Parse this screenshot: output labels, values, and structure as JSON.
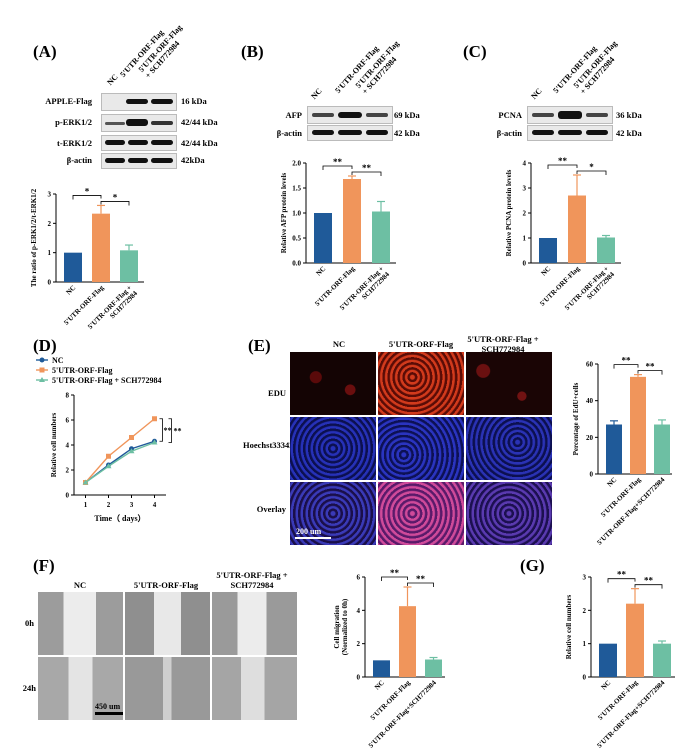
{
  "colors": {
    "nc": "#1f5a99",
    "orf": "#f0955b",
    "sch": "#6dbfa3"
  },
  "panel_labels": {
    "A": "(A)",
    "B": "(B)",
    "C": "(C)",
    "D": "(D)",
    "E": "(E)",
    "F": "(F)",
    "G": "(G)"
  },
  "lanes": {
    "nc": "NC",
    "orf": "5'UTR-ORF-Flag",
    "sch_line1": "5'UTR-ORF-Flag",
    "sch_line2": "+ SCH772984"
  },
  "blot_A": {
    "rows": [
      {
        "label": "APPLE-Flag",
        "kda": "16 kDa"
      },
      {
        "label": "p-ERK1/2",
        "kda": "42/44 kDa"
      },
      {
        "label": "t-ERK1/2",
        "kda": "42/44 kDa"
      },
      {
        "label": "β-actin",
        "kda": "42kDa"
      }
    ]
  },
  "blot_B": {
    "rows": [
      {
        "label": "AFP",
        "kda": "69 kDa"
      },
      {
        "label": "β-actin",
        "kda": "42 kDa"
      }
    ]
  },
  "blot_C": {
    "rows": [
      {
        "label": "PCNA",
        "kda": "36 kDa"
      },
      {
        "label": "β-actin",
        "kda": "42 kDa"
      }
    ]
  },
  "cond_labels": {
    "nc": "NC",
    "orf": "5'UTR-ORF-Flag",
    "sch_line1": "5'UTR-ORF-Flag +",
    "sch_line2": "SCH772984"
  },
  "panel_E": {
    "rows": [
      "EDU",
      "Hoechst33342",
      "Overlay"
    ],
    "scale": "200 um"
  },
  "panel_F": {
    "rows": [
      "0h",
      "24h"
    ],
    "scale": "450 um"
  },
  "chart_data": [
    {
      "id": "A",
      "type": "bar",
      "categories": [
        "NC",
        "5'UTR-ORF-Flag",
        "5'UTR-ORF-Flag + SCH772984"
      ],
      "values": [
        1.0,
        2.33,
        1.08
      ],
      "errors": [
        0,
        0.28,
        0.18
      ],
      "ylabel": "The ratio of p-ERK1/2/t-ERK1/2",
      "ylim": [
        0,
        3
      ],
      "yticks": [
        0,
        1,
        2,
        3
      ],
      "significance": [
        "*",
        "*"
      ]
    },
    {
      "id": "B",
      "type": "bar",
      "categories": [
        "NC",
        "5'UTR-ORF-Flag",
        "5'UTR-ORF-Flag + SCH772984"
      ],
      "values": [
        1.0,
        1.68,
        1.03
      ],
      "errors": [
        0,
        0.06,
        0.2
      ],
      "ylabel": "Relative AFP protein levels",
      "ylim": [
        0,
        2
      ],
      "yticks": [
        0.0,
        0.5,
        1.0,
        1.5,
        2.0
      ],
      "significance": [
        "**",
        "**"
      ]
    },
    {
      "id": "C",
      "type": "bar",
      "categories": [
        "NC",
        "5'UTR-ORF-Flag",
        "5'UTR-ORF-Flag + SCH772984"
      ],
      "values": [
        1.0,
        2.7,
        1.02
      ],
      "errors": [
        0,
        0.82,
        0.08
      ],
      "ylabel": "Relative PCNA protein levels",
      "ylim": [
        0,
        4
      ],
      "yticks": [
        0,
        1,
        2,
        3,
        4
      ],
      "significance": [
        "**",
        "*"
      ]
    },
    {
      "id": "D",
      "type": "line",
      "x": [
        1,
        2,
        3,
        4
      ],
      "xlabel": "Time（ days）",
      "ylabel": "Relative cell numbers",
      "ylim": [
        0,
        8
      ],
      "yticks": [
        0,
        2,
        4,
        6,
        8
      ],
      "xticks": [
        1,
        2,
        3,
        4
      ],
      "series": [
        {
          "name": "NC",
          "values": [
            1.0,
            2.4,
            3.7,
            4.3
          ]
        },
        {
          "name": "5'UTR-ORF-Flag",
          "values": [
            1.0,
            3.1,
            4.6,
            6.1
          ]
        },
        {
          "name": "5'UTR-ORF-Flag + SCH772984",
          "values": [
            1.0,
            2.3,
            3.5,
            4.2
          ]
        }
      ],
      "significance": [
        "**",
        "**"
      ]
    },
    {
      "id": "E",
      "type": "bar",
      "categories": [
        "NC",
        "5'UTR-ORF-Flag",
        "5'UTR-ORF-Flag+SCH772984"
      ],
      "values": [
        27,
        53,
        27
      ],
      "errors": [
        2,
        1.2,
        2.5
      ],
      "ylabel": "Percentage of EdU+cells",
      "ylim": [
        0,
        60
      ],
      "yticks": [
        0,
        20,
        40,
        60
      ],
      "significance": [
        "**",
        "**"
      ]
    },
    {
      "id": "F",
      "type": "bar",
      "categories": [
        "NC",
        "5'UTR-ORF-Flag",
        "5'UTR-ORF-Flag+SCH772984"
      ],
      "values": [
        1.0,
        4.25,
        1.05
      ],
      "errors": [
        0,
        1.15,
        0.12
      ],
      "ylabel": "Cell migration (Normalized to 0h)",
      "ylim": [
        0,
        6
      ],
      "yticks": [
        0,
        2,
        4,
        6
      ],
      "significance": [
        "**",
        "**"
      ]
    },
    {
      "id": "G",
      "type": "bar",
      "categories": [
        "NC",
        "5'UTR-ORF-Flag",
        "5'UTR-ORF-Flag+SCH772984"
      ],
      "values": [
        1.0,
        2.2,
        1.0
      ],
      "errors": [
        0,
        0.45,
        0.08
      ],
      "ylabel": "Relative cell numbers",
      "ylim": [
        0,
        3
      ],
      "yticks": [
        0,
        1,
        2,
        3
      ],
      "significance": [
        "**",
        "**"
      ]
    }
  ]
}
